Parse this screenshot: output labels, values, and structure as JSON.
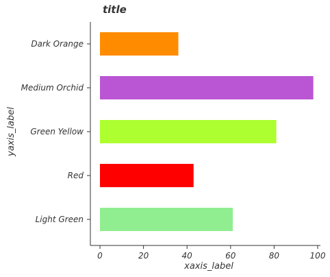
{
  "chart_data": {
    "type": "bar",
    "orientation": "horizontal",
    "title": "title",
    "xlabel": "xaxis_label",
    "ylabel": "yaxis_label",
    "xlim": [
      0,
      100
    ],
    "xticks": [
      "0",
      "20",
      "40",
      "60",
      "80",
      "100"
    ],
    "categories": [
      "Light Green",
      "Red",
      "Green Yellow",
      "Medium Orchid",
      "Dark Orange"
    ],
    "values": [
      61,
      43,
      81,
      98,
      36
    ],
    "colors": [
      "#90EE90",
      "#FF0000",
      "#ADFF2F",
      "#BA55D3",
      "#FF8C00"
    ],
    "grid": false,
    "legend": "none"
  }
}
